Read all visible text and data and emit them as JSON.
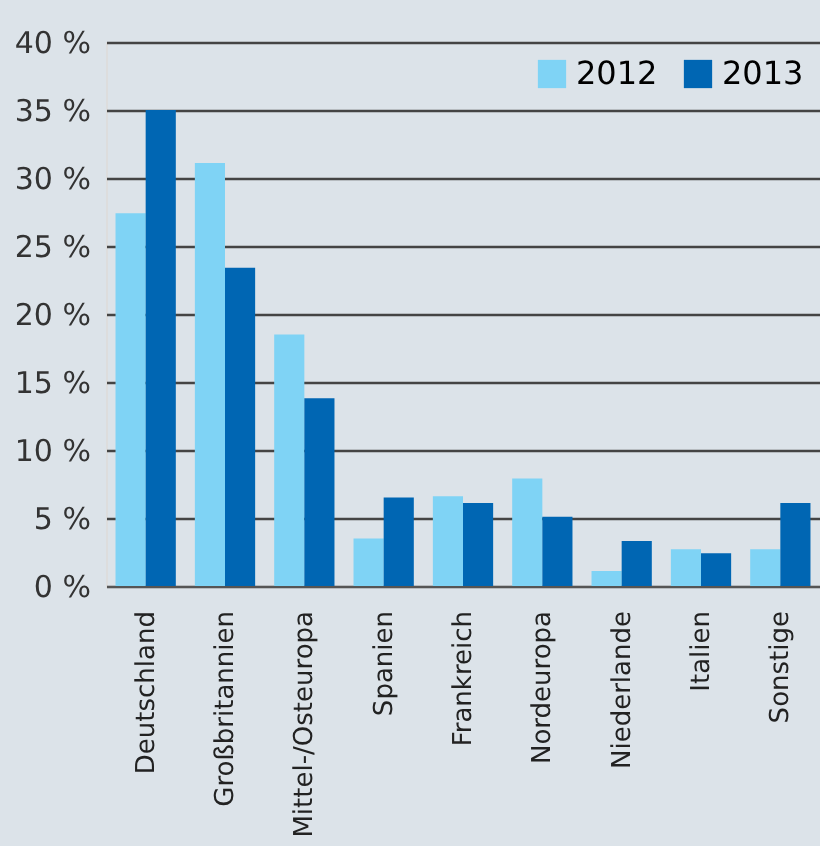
{
  "chart_data": {
    "type": "bar",
    "categories": [
      "Deutschland",
      "Großbritannien",
      "Mittel-/Osteuropa",
      "Spanien",
      "Frankreich",
      "Nordeuropa",
      "Niederlande",
      "Italien",
      "Sonstige"
    ],
    "series": [
      {
        "name": "2012",
        "color": "#7fd3f5",
        "values": [
          27.4,
          31.1,
          18.5,
          3.5,
          6.6,
          7.9,
          1.1,
          2.7,
          2.7
        ]
      },
      {
        "name": "2013",
        "color": "#0066b3",
        "values": [
          35,
          23.4,
          13.8,
          6.5,
          6.1,
          5.1,
          3.3,
          2.4,
          6.1
        ]
      }
    ],
    "ylim": [
      0,
      40
    ],
    "yticks": [
      {
        "value": 0,
        "label": "0 %"
      },
      {
        "value": 5,
        "label": "5 %"
      },
      {
        "value": 10,
        "label": "10 %"
      },
      {
        "value": 15,
        "label": "15 %"
      },
      {
        "value": 20,
        "label": "20 %"
      },
      {
        "value": 25,
        "label": "25 %"
      },
      {
        "value": 30,
        "label": "30 %"
      },
      {
        "value": 35,
        "label": "35 %"
      },
      {
        "value": 40,
        "label": "40 %"
      }
    ],
    "grid": "y",
    "legend": "top right"
  }
}
